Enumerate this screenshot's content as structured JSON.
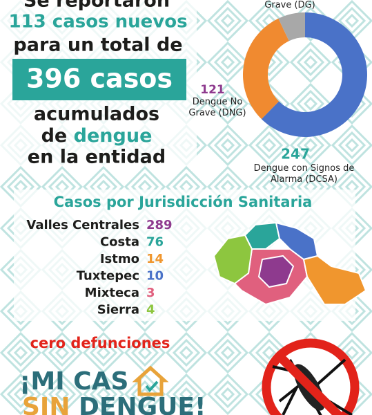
{
  "header": {
    "line0": "Se reportaron",
    "line1": "113 casos nuevos",
    "line2": "para un total de",
    "total": "396 casos",
    "line3": "acumulados",
    "line4a": "de",
    "line4b": "dengue",
    "line5": "en la entidad"
  },
  "chart_data": {
    "type": "pie",
    "donut": true,
    "categories": [
      "Grave (DG)",
      "Dengue No Grave (DNG)",
      "Dengue con Signos de Alarma (DCSA)"
    ],
    "values": [
      28,
      121,
      247
    ],
    "colors": [
      "#a8a8a8",
      "#f08a30",
      "#4a72c8"
    ]
  },
  "jurisdictions": {
    "title": "Casos por Jurisdicción Sanitaria",
    "rows": [
      {
        "name": "Valles Centrales",
        "value": 289,
        "color": "#8e3a8e"
      },
      {
        "name": "Costa",
        "value": 76,
        "color": "#2aa59a"
      },
      {
        "name": "Istmo",
        "value": 14,
        "color": "#f0962e"
      },
      {
        "name": "Tuxtepec",
        "value": 10,
        "color": "#4a72c8"
      },
      {
        "name": "Mixteca",
        "value": 3,
        "color": "#e0607e"
      },
      {
        "name": "Sierra",
        "value": 4,
        "color": "#8dc63f"
      }
    ]
  },
  "deaths": "cero defunciones",
  "logo": {
    "line1": "¡MI CAS",
    "line2a": "SIN",
    "line2b": "DENGUE!"
  }
}
